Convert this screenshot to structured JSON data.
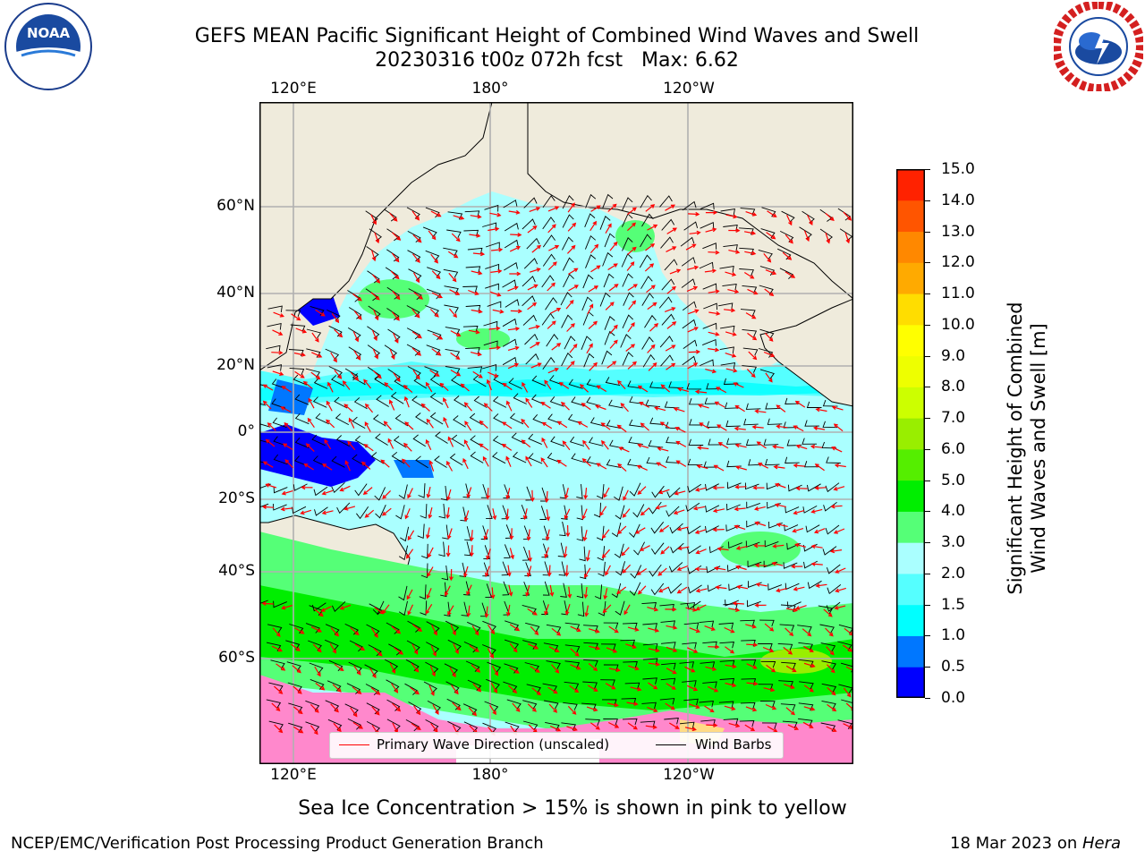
{
  "title": {
    "line1": "GEFS MEAN Pacific Significant Height of Combined Wind Waves and Swell",
    "line2": "20230316 t00z 072h fcst   Max: 6.62"
  },
  "logos": {
    "noaa": {
      "center_text": "NOAA",
      "ring_text": "NATIONAL OCEANIC AND ATMOSPHERIC ADMINISTRATION · U.S. DEPARTMENT OF COMMERCE"
    },
    "nws": {
      "ring_text": "NATIONAL WEATHER SERVICE"
    }
  },
  "map": {
    "top_lon_labels": [
      "120°E",
      "180°",
      "120°W"
    ],
    "bottom_lon_labels": [
      "120°E",
      "180°",
      "120°W"
    ],
    "lat_labels": [
      "60°N",
      "40°N",
      "20°N",
      "0°",
      "20°S",
      "40°S",
      "60°S"
    ],
    "land_color": "#efebdc",
    "ocean_base_color": "#aaffff"
  },
  "legend": {
    "wave_direction": "Primary Wave Direction (unscaled)",
    "wind_barbs": "Wind Barbs",
    "wave_color": "#ff0000",
    "barb_color": "#000000"
  },
  "colorbar": {
    "label_line1": "Significant Height of Combined",
    "label_line2": "Wind Waves and Swell [m]",
    "ticks": [
      "15.0",
      "14.0",
      "13.0",
      "12.0",
      "11.0",
      "10.0",
      "9.0",
      "8.0",
      "7.0",
      "6.0",
      "5.0",
      "4.0",
      "3.0",
      "2.0",
      "1.5",
      "1.0",
      "0.5",
      "0.0"
    ],
    "colors": [
      "#0000ff",
      "#0077ff",
      "#00ffff",
      "#55ffff",
      "#aaffff",
      "#55ff77",
      "#00ee00",
      "#55ee00",
      "#99ee00",
      "#ccff00",
      "#eeff00",
      "#ffff00",
      "#ffdd00",
      "#ffaa00",
      "#ff8800",
      "#ff5500",
      "#ff2200"
    ]
  },
  "ice_note": "Sea Ice Concentration > 15% is shown in pink to yellow",
  "footer": {
    "left": "NCEP/EMC/Verification Post Processing Product Generation Branch",
    "right_prefix": "18 Mar 2023 on ",
    "right_machine": "Hera"
  }
}
